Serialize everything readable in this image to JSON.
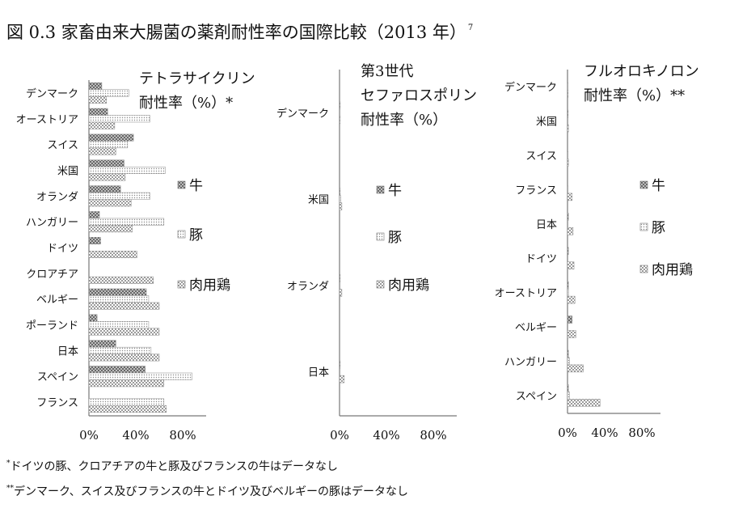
{
  "title": "図 0.3  家畜由来大腸菌の薬剤耐性率の国際比較（2013 年）",
  "title_ref": "7",
  "footnotes": [
    {
      "mark": "*",
      "text": "ドイツの豚、クロアチアの牛と豚及びフランスの牛はデータなし"
    },
    {
      "mark": "**",
      "text": "デンマーク、スイス及びフランスの牛とドイツ及びベルギーの豚はデータなし"
    }
  ],
  "legend": [
    {
      "name": "牛",
      "pattern": "cross",
      "color": "#808080"
    },
    {
      "name": "豚",
      "pattern": "dots",
      "color": "#a0a0a0"
    },
    {
      "name": "肉用鶏",
      "pattern": "checker",
      "color": "#a0a0a0"
    }
  ],
  "chart_data": [
    {
      "type": "bar",
      "orientation": "horizontal",
      "title_lines": [
        "テトラサイクリン",
        "耐性率（%）*"
      ],
      "categories": [
        "デンマーク",
        "オーストリア",
        "スイス",
        "米国",
        "オランダ",
        "ハンガリー",
        "ドイツ",
        "クロアチア",
        "ベルギー",
        "ポーランド",
        "日本",
        "スペイン",
        "フランス"
      ],
      "series": [
        {
          "name": "牛",
          "values": [
            11,
            16,
            38,
            30,
            27,
            9,
            10,
            null,
            49,
            7,
            23,
            48,
            null
          ]
        },
        {
          "name": "豚",
          "values": [
            34,
            52,
            33,
            65,
            52,
            64,
            null,
            null,
            51,
            51,
            53,
            88,
            64
          ]
        },
        {
          "name": "肉用鶏",
          "values": [
            15,
            22,
            23,
            31,
            36,
            37,
            41,
            55,
            60,
            60,
            60,
            64,
            66
          ]
        }
      ],
      "xlim": [
        0,
        100
      ],
      "xticks": [
        "0%",
        "40%",
        "80%"
      ],
      "xtick_values": [
        0,
        40,
        80
      ]
    },
    {
      "type": "bar",
      "orientation": "horizontal",
      "title_lines": [
        "第3世代",
        "セファロスポリン",
        "耐性率（%）"
      ],
      "categories": [
        "デンマーク",
        "米国",
        "オランダ",
        "日本"
      ],
      "series": [
        {
          "name": "牛",
          "values": [
            0,
            0,
            0,
            0
          ]
        },
        {
          "name": "豚",
          "values": [
            0,
            1,
            0,
            0
          ]
        },
        {
          "name": "肉用鶏",
          "values": [
            0,
            2,
            2,
            4
          ]
        }
      ],
      "xlim": [
        0,
        100
      ],
      "xticks": [
        "0%",
        "40%",
        "80%"
      ],
      "xtick_values": [
        0,
        40,
        80
      ]
    },
    {
      "type": "bar",
      "orientation": "horizontal",
      "title_lines": [
        "フルオロキノロン",
        "耐性率（%）**"
      ],
      "categories": [
        "デンマーク",
        "米国",
        "スイス",
        "フランス",
        "日本",
        "ドイツ",
        "オーストリア",
        "ベルギー",
        "ハンガリー",
        "スペイン"
      ],
      "series": [
        {
          "name": "牛",
          "values": [
            null,
            0,
            null,
            null,
            1,
            1,
            1,
            5,
            1,
            1
          ]
        },
        {
          "name": "豚",
          "values": [
            0,
            0,
            0,
            0,
            0,
            null,
            1,
            null,
            2,
            2
          ]
        },
        {
          "name": "肉用鶏",
          "values": [
            0,
            1,
            1,
            5,
            6,
            7,
            8,
            9,
            17,
            35
          ]
        }
      ],
      "xlim": [
        0,
        100
      ],
      "xticks": [
        "0%",
        "40%",
        "80%"
      ],
      "xtick_values": [
        0,
        40,
        80
      ]
    }
  ]
}
